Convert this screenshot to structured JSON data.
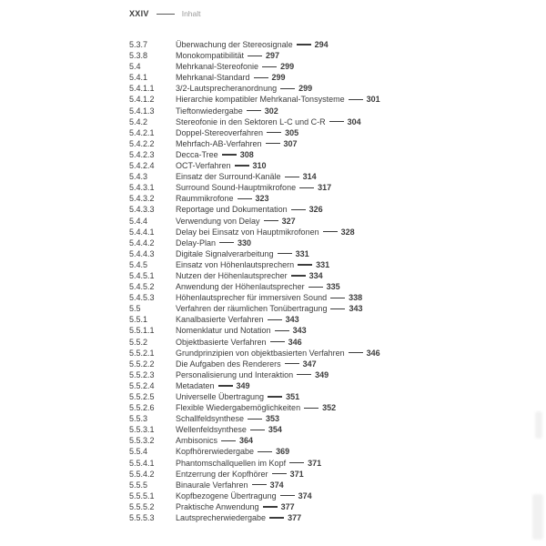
{
  "header": {
    "page_label": "XXIV",
    "section_title": "Inhalt"
  },
  "colors": {
    "text": "#3c3c3c",
    "muted_header_text": "#9b9b9b",
    "background": "#ffffff"
  },
  "toc_entries": [
    {
      "num": "5.3.7",
      "title": "Überwachung der Stereosignale",
      "page": "294"
    },
    {
      "num": "5.3.8",
      "title": "Monokompatibilität",
      "page": "297"
    },
    {
      "num": "5.4",
      "title": "Mehrkanal-Stereofonie",
      "page": "299"
    },
    {
      "num": "5.4.1",
      "title": "Mehrkanal-Standard",
      "page": "299"
    },
    {
      "num": "5.4.1.1",
      "title": "3/2-Lautsprecheranordnung",
      "page": "299"
    },
    {
      "num": "5.4.1.2",
      "title": "Hierarchie kompatibler Mehrkanal-Tonsysteme",
      "page": "301"
    },
    {
      "num": "5.4.1.3",
      "title": "Tieftonwiedergabe",
      "page": "302"
    },
    {
      "num": "5.4.2",
      "title": "Stereofonie in den Sektoren L-C und C-R",
      "page": "304"
    },
    {
      "num": "5.4.2.1",
      "title": "Doppel-Stereoverfahren",
      "page": "305"
    },
    {
      "num": "5.4.2.2",
      "title": "Mehrfach-AB-Verfahren",
      "page": "307"
    },
    {
      "num": "5.4.2.3",
      "title": "Decca-Tree",
      "page": "308"
    },
    {
      "num": "5.4.2.4",
      "title": "OCT-Verfahren",
      "page": "310"
    },
    {
      "num": "5.4.3",
      "title": "Einsatz der Surround-Kanäle",
      "page": "314"
    },
    {
      "num": "5.4.3.1",
      "title": "Surround Sound-Hauptmikrofone",
      "page": "317"
    },
    {
      "num": "5.4.3.2",
      "title": "Raummikrofone",
      "page": "323"
    },
    {
      "num": "5.4.3.3",
      "title": "Reportage und Dokumentation",
      "page": "326"
    },
    {
      "num": "5.4.4",
      "title": "Verwendung von Delay",
      "page": "327"
    },
    {
      "num": "5.4.4.1",
      "title": "Delay bei Einsatz von Hauptmikrofonen",
      "page": "328"
    },
    {
      "num": "5.4.4.2",
      "title": "Delay-Plan",
      "page": "330"
    },
    {
      "num": "5.4.4.3",
      "title": "Digitale Signalverarbeitung",
      "page": "331"
    },
    {
      "num": "5.4.5",
      "title": "Einsatz von Höhenlautsprechern",
      "page": "331"
    },
    {
      "num": "5.4.5.1",
      "title": "Nutzen der Höhenlautsprecher",
      "page": "334"
    },
    {
      "num": "5.4.5.2",
      "title": "Anwendung der Höhenlautsprecher",
      "page": "335"
    },
    {
      "num": "5.4.5.3",
      "title": "Höhenlautsprecher für immersiven Sound",
      "page": "338"
    },
    {
      "num": "5.5",
      "title": "Verfahren der räumlichen Tonübertragung",
      "page": "343"
    },
    {
      "num": "5.5.1",
      "title": "Kanalbasierte Verfahren",
      "page": "343"
    },
    {
      "num": "5.5.1.1",
      "title": "Nomenklatur und Notation",
      "page": "343"
    },
    {
      "num": "5.5.2",
      "title": "Objektbasierte Verfahren",
      "page": "346"
    },
    {
      "num": "5.5.2.1",
      "title": "Grundprinzipien von objektbasierten Verfahren",
      "page": "346"
    },
    {
      "num": "5.5.2.2",
      "title": "Die Aufgaben des Renderers",
      "page": "347"
    },
    {
      "num": "5.5.2.3",
      "title": "Personalisierung und Interaktion",
      "page": "349"
    },
    {
      "num": "5.5.2.4",
      "title": "Metadaten",
      "page": "349"
    },
    {
      "num": "5.5.2.5",
      "title": "Universelle Übertragung",
      "page": "351"
    },
    {
      "num": "5.5.2.6",
      "title": "Flexible Wiedergabemöglichkeiten",
      "page": "352"
    },
    {
      "num": "5.5.3",
      "title": "Schallfeldsynthese",
      "page": "353"
    },
    {
      "num": "5.5.3.1",
      "title": "Wellenfeldsynthese",
      "page": "354"
    },
    {
      "num": "5.5.3.2",
      "title": "Ambisonics",
      "page": "364"
    },
    {
      "num": "5.5.4",
      "title": "Kopfhörerwiedergabe",
      "page": "369"
    },
    {
      "num": "5.5.4.1",
      "title": "Phantomschallquellen im Kopf",
      "page": "371"
    },
    {
      "num": "5.5.4.2",
      "title": "Entzerrung der Kopfhörer",
      "page": "371"
    },
    {
      "num": "5.5.5",
      "title": "Binaurale Verfahren",
      "page": "374"
    },
    {
      "num": "5.5.5.1",
      "title": "Kopfbezogene Übertragung",
      "page": "374"
    },
    {
      "num": "5.5.5.2",
      "title": "Praktische Anwendung",
      "page": "377"
    },
    {
      "num": "5.5.5.3",
      "title": "Lautsprecherwiedergabe",
      "page": "377"
    }
  ]
}
